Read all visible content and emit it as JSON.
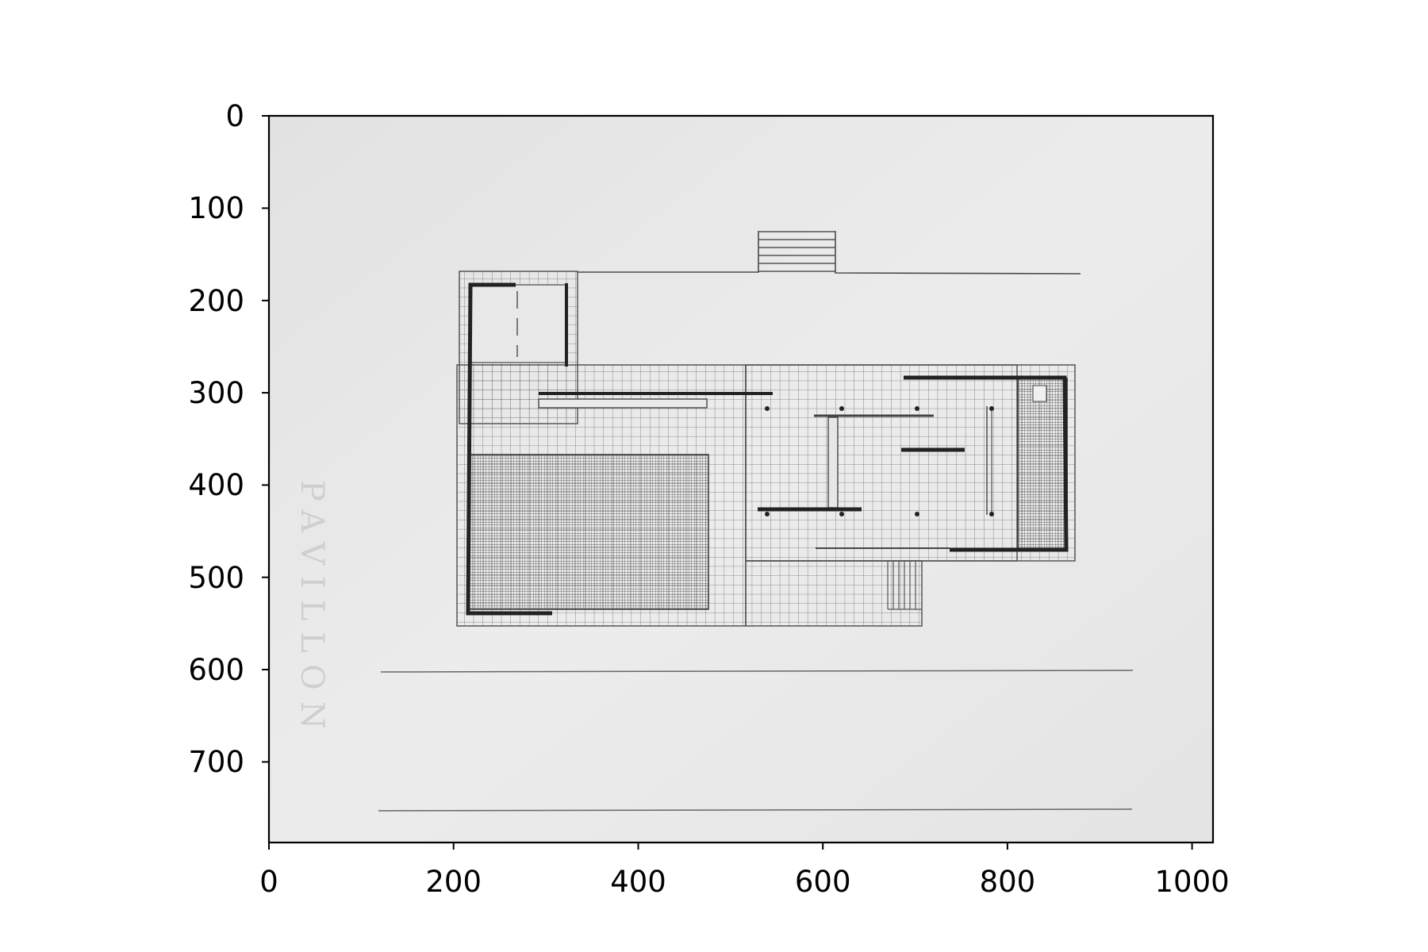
{
  "figure": {
    "title": "",
    "xlabel": "",
    "ylabel": ""
  },
  "axes": {
    "x_ticks": [
      0,
      200,
      400,
      600,
      800,
      1000
    ],
    "y_ticks": [
      0,
      100,
      200,
      300,
      400,
      500,
      600,
      700
    ],
    "x_range": [
      0,
      1024
    ],
    "y_range": [
      788,
      0
    ]
  },
  "image": {
    "subject": "architectural floor plan drawing",
    "palette": {
      "paper": "#e6e6e6",
      "line": "#3a3a3a",
      "dark_line": "#1e1e1e"
    },
    "faint_handwriting": "PAVILLON"
  }
}
